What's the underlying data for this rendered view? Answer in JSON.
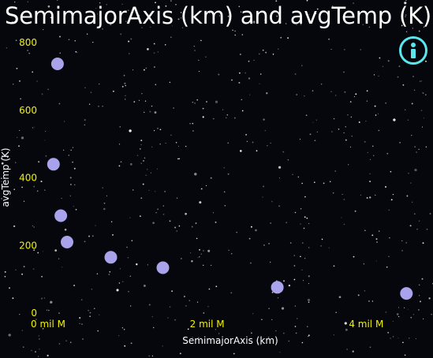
{
  "header": {
    "title": "SemimajorAxis (km) and avgTemp (K)"
  },
  "info_button": {
    "icon": "info-icon",
    "color": "#59e6ec"
  },
  "chart_data": {
    "type": "scatter",
    "title": "SemimajorAxis (km) and avgTemp (K)",
    "xlabel": "SemimajorAxis (km)",
    "ylabel": "avgTemp (K)",
    "x_ticks": [
      "0 mil M",
      "2 mil M",
      "4 mil M"
    ],
    "x_tick_values": [
      0,
      2000000000,
      4000000000
    ],
    "y_ticks": [
      "0",
      "200",
      "400",
      "600",
      "800"
    ],
    "y_tick_values": [
      0,
      200,
      400,
      600,
      800
    ],
    "xlim": [
      0,
      4800000000
    ],
    "ylim": [
      0,
      800
    ],
    "grid": false,
    "point_color": "#a9a3ec",
    "tick_color": "#f2f200",
    "background": "starfield",
    "points": [
      {
        "x": 57900000,
        "y": 440
      },
      {
        "x": 108200000,
        "y": 737
      },
      {
        "x": 149600000,
        "y": 288
      },
      {
        "x": 227900000,
        "y": 210
      },
      {
        "x": 778600000,
        "y": 165
      },
      {
        "x": 1433500000,
        "y": 134
      },
      {
        "x": 2872500000,
        "y": 76
      },
      {
        "x": 4495100000,
        "y": 58
      }
    ]
  }
}
